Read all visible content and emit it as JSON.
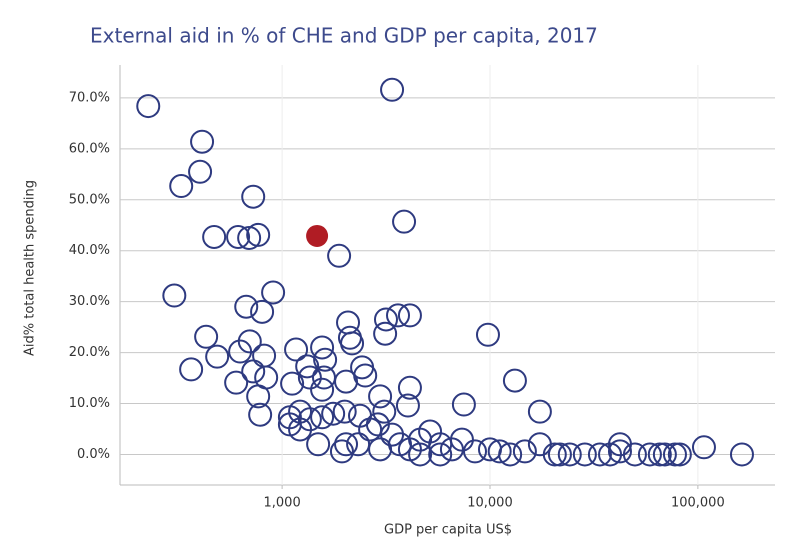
{
  "chart_data": {
    "type": "scatter",
    "title": "External aid in % of CHE and GDP per capita, 2017",
    "x_label": "GDP per capita US$",
    "y_label": "Aid% total health spending",
    "x_log": true,
    "grid": true,
    "xlim": [
      166,
      235000
    ],
    "ylim": [
      -6,
      74.5
    ],
    "xticks": [
      {
        "value": 1000,
        "label": "1,000"
      },
      {
        "value": 10000,
        "label": "10,000"
      },
      {
        "value": 100000,
        "label": "100,000"
      }
    ],
    "yticks": [
      {
        "value": 0,
        "label": "0.0%"
      },
      {
        "value": 10,
        "label": "10.0%"
      },
      {
        "value": 20,
        "label": "20.0%"
      },
      {
        "value": 30,
        "label": "30.0%"
      },
      {
        "value": 40,
        "label": "40.0%"
      },
      {
        "value": 50,
        "label": "50.0%"
      },
      {
        "value": 60,
        "label": "60.0%"
      },
      {
        "value": 70,
        "label": "70.0%"
      }
    ],
    "series": [
      {
        "color": "#2e3a80",
        "filled": false,
        "x": [
          227,
          3380,
          412,
          403,
          327,
          726,
          471,
          614,
          694,
          767,
          1880,
          3860,
          303,
          905,
          672,
          801,
          431,
          699,
          628,
          487,
          819,
          365,
          726,
          601,
          838,
          767,
          784,
          1167,
          1557,
          2075,
          2120,
          2170,
          2425,
          2510,
          2030,
          1610,
          1320,
          1360,
          1117,
          1590,
          1557,
          3160,
          3610,
          4120,
          3130,
          2960,
          3100,
          4120,
          4030,
          1090,
          1220,
          1360,
          1557,
          1760,
          2000,
          2370,
          1090,
          1220,
          1490,
          1940,
          2030,
          2320,
          2650,
          2890,
          3380,
          3690,
          2960,
          4120,
          4610,
          5150,
          5760,
          6560,
          7330,
          7490,
          8470,
          10000,
          9780,
          11130,
          13180,
          14720,
          17380,
          17380,
          20500,
          24200,
          28600,
          33800,
          42200,
          42200,
          49800,
          58800,
          69400,
          81900,
          107000,
          163000,
          4610,
          5760,
          12500,
          21700,
          37800,
          65600,
          77600
        ],
        "values": [
          68.4,
          71.6,
          61.4,
          55.5,
          52.7,
          50.6,
          42.7,
          42.7,
          42.5,
          43.1,
          39.0,
          45.7,
          31.2,
          31.8,
          29.0,
          28.0,
          23.1,
          22.2,
          20.2,
          19.2,
          19.4,
          16.7,
          16.3,
          14.1,
          15.1,
          11.4,
          7.8,
          20.6,
          21.0,
          25.9,
          22.9,
          21.8,
          17.1,
          15.5,
          14.3,
          18.6,
          17.3,
          15.1,
          13.9,
          15.1,
          12.7,
          26.5,
          27.3,
          27.3,
          23.7,
          11.4,
          8.4,
          13.1,
          9.6,
          7.3,
          8.4,
          6.9,
          7.3,
          8.0,
          8.4,
          7.6,
          5.9,
          4.9,
          2.0,
          0.6,
          2.0,
          2.0,
          4.9,
          5.9,
          3.9,
          2.0,
          1.0,
          1.0,
          2.9,
          4.5,
          2.0,
          1.0,
          2.9,
          9.8,
          0.6,
          1.0,
          23.5,
          0.6,
          14.5,
          0.6,
          8.4,
          2.0,
          0,
          0,
          0,
          0,
          0.6,
          2.0,
          0,
          0,
          0,
          0,
          1.4,
          0,
          0,
          0,
          0,
          0,
          0,
          0,
          0
        ]
      },
      {
        "color": "#b01c24",
        "filled": true,
        "x": [
          1473
        ],
        "values": [
          42.9
        ]
      }
    ]
  }
}
